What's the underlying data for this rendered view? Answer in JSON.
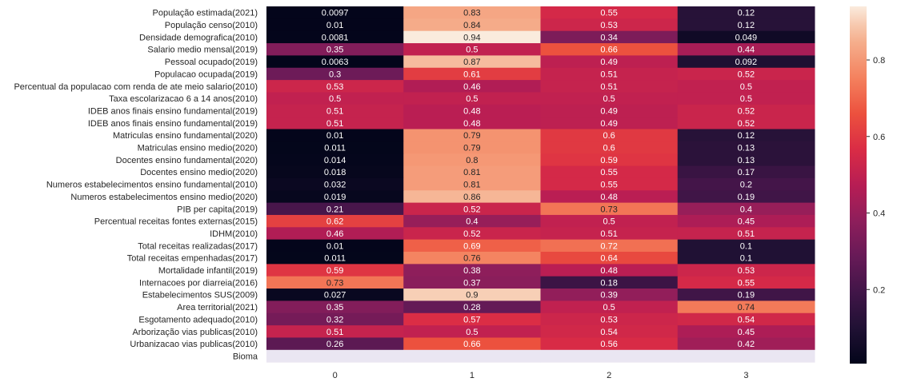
{
  "chart_data": {
    "type": "heatmap",
    "title": "",
    "xlabel": "",
    "ylabel": "",
    "x_categories": [
      "0",
      "1",
      "2",
      "3"
    ],
    "y_categories": [
      "População estimada(2021)",
      "População censo(2010)",
      "Densidade demografica(2010)",
      "Salario medio mensal(2019)",
      "Pessoal ocupado(2019)",
      "Populacao ocupada(2019)",
      "Percentual da populacao com renda de ate meio salario(2010)",
      "Taxa escolarizacao 6 a 14 anos(2010)",
      "IDEB anos finais ensino fundamental(2019)",
      "IDEB anos finais ensino fundamental(2019)",
      "Matriculas ensino fundamental(2020)",
      "Matriculas ensino medio(2020)",
      "Docentes ensino fundamental(2020)",
      "Docentes ensino medio(2020)",
      "Numeros estabelecimentos ensino fundamental(2010)",
      "Numeros estabelecimentos ensino medio(2020)",
      "PIB per capita(2019)",
      "Percentual receitas fontes externas(2015)",
      "IDHM(2010)",
      "Total receitas realizadas(2017)",
      "Total receitas empenhadas(2017)",
      "Mortalidade infantil(2019)",
      "Internacoes por diarreia(2016)",
      "Estabelecimentos SUS(2009)",
      "Area territorial(2021)",
      "Esgotamento adequado(2010)",
      "Arborização vias publicas(2010)",
      "Urbanizacao vias publicas(2010)",
      "Bioma"
    ],
    "values": [
      [
        "0.0097",
        "0.83",
        "0.55",
        "0.12"
      ],
      [
        "0.01",
        "0.84",
        "0.53",
        "0.12"
      ],
      [
        "0.0081",
        "0.94",
        "0.34",
        "0.049"
      ],
      [
        "0.35",
        "0.5",
        "0.66",
        "0.44"
      ],
      [
        "0.0063",
        "0.87",
        "0.49",
        "0.092"
      ],
      [
        "0.3",
        "0.61",
        "0.51",
        "0.52"
      ],
      [
        "0.53",
        "0.46",
        "0.51",
        "0.5"
      ],
      [
        "0.5",
        "0.5",
        "0.5",
        "0.5"
      ],
      [
        "0.51",
        "0.48",
        "0.49",
        "0.52"
      ],
      [
        "0.51",
        "0.48",
        "0.49",
        "0.52"
      ],
      [
        "0.01",
        "0.79",
        "0.6",
        "0.12"
      ],
      [
        "0.011",
        "0.79",
        "0.6",
        "0.13"
      ],
      [
        "0.014",
        "0.8",
        "0.59",
        "0.13"
      ],
      [
        "0.018",
        "0.81",
        "0.55",
        "0.17"
      ],
      [
        "0.032",
        "0.81",
        "0.55",
        "0.2"
      ],
      [
        "0.019",
        "0.86",
        "0.48",
        "0.19"
      ],
      [
        "0.21",
        "0.52",
        "0.73",
        "0.4"
      ],
      [
        "0.62",
        "0.4",
        "0.5",
        "0.45"
      ],
      [
        "0.46",
        "0.52",
        "0.51",
        "0.51"
      ],
      [
        "0.01",
        "0.69",
        "0.72",
        "0.1"
      ],
      [
        "0.011",
        "0.76",
        "0.64",
        "0.1"
      ],
      [
        "0.59",
        "0.38",
        "0.48",
        "0.53"
      ],
      [
        "0.73",
        "0.37",
        "0.18",
        "0.55"
      ],
      [
        "0.027",
        "0.9",
        "0.39",
        "0.19"
      ],
      [
        "0.35",
        "0.28",
        "0.5",
        "0.74"
      ],
      [
        "0.32",
        "0.57",
        "0.53",
        "0.54"
      ],
      [
        "0.51",
        "0.5",
        "0.54",
        "0.45"
      ],
      [
        "0.26",
        "0.66",
        "0.56",
        "0.42"
      ],
      [
        null,
        null,
        null,
        null
      ]
    ],
    "colorbar": {
      "range": [
        0.0063,
        0.94
      ],
      "ticks": [
        "0.2",
        "0.4",
        "0.6",
        "0.8"
      ],
      "colormap": "rocket"
    },
    "missing_color": "#eae6f2"
  }
}
